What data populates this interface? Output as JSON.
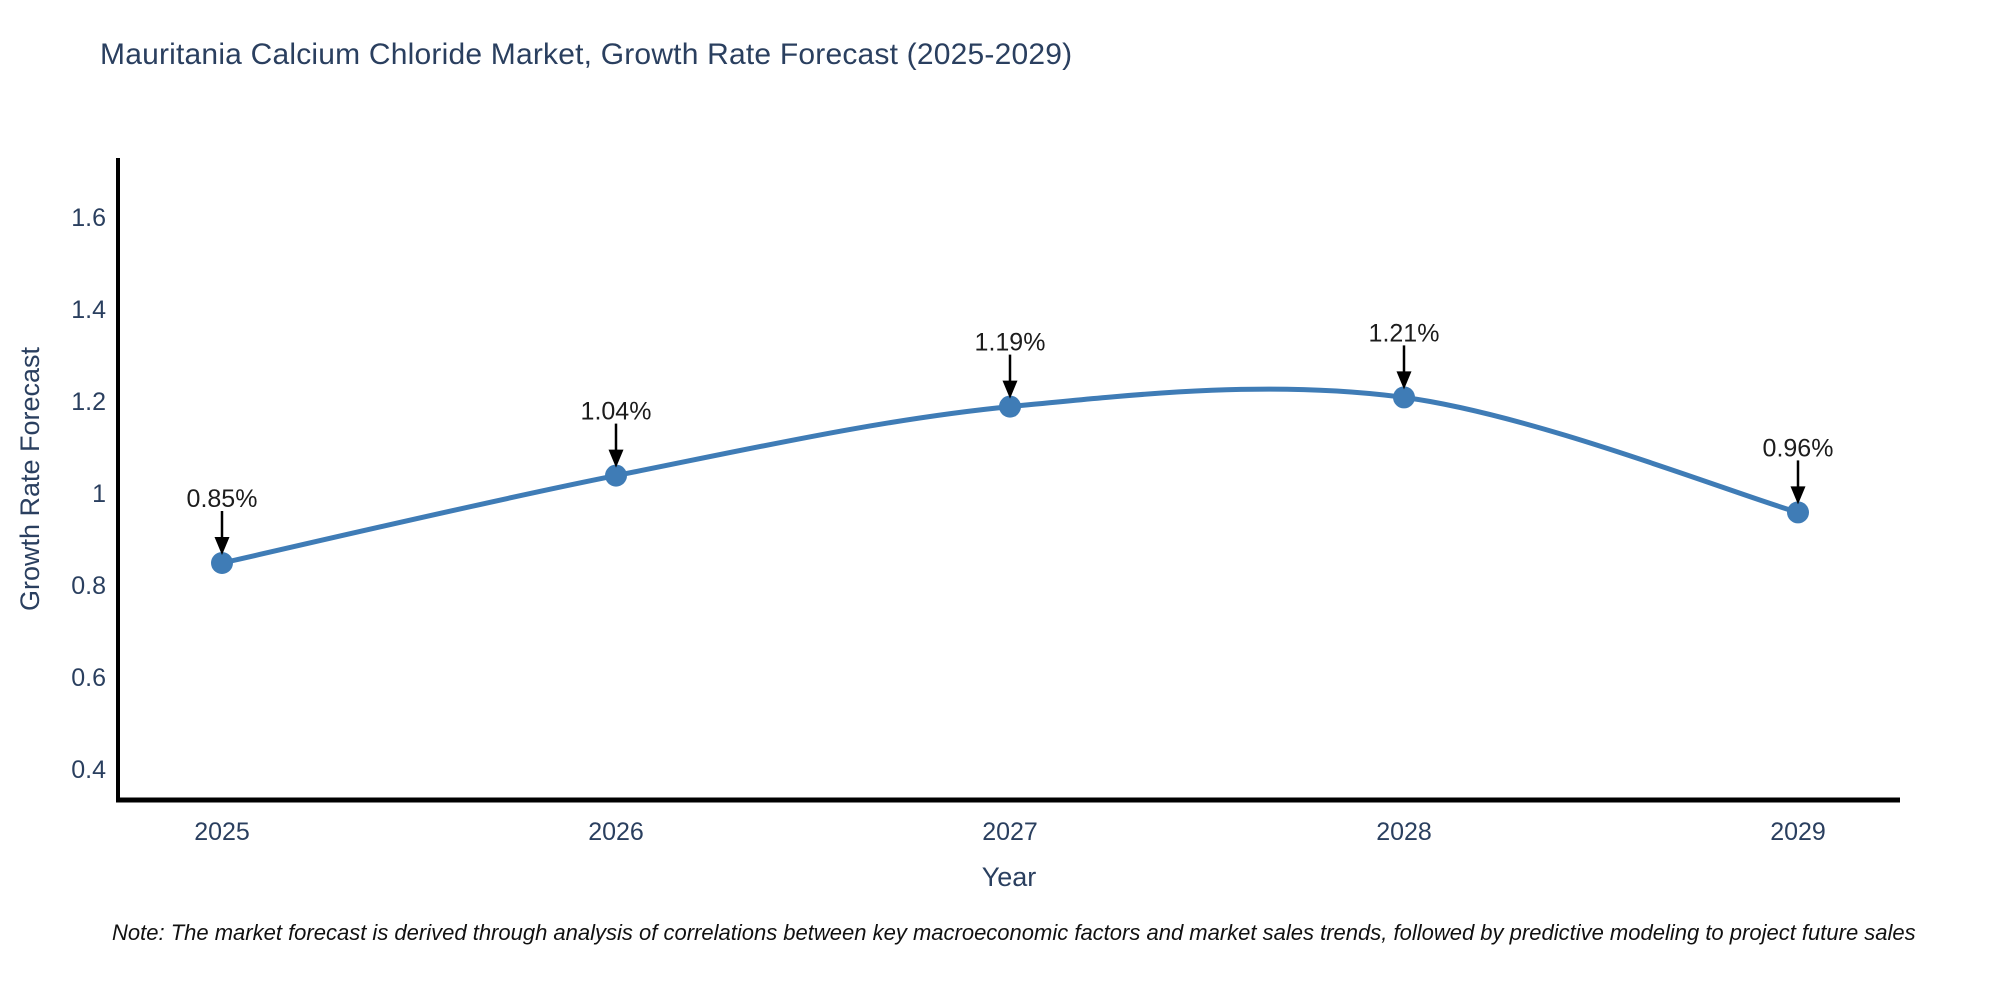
{
  "chart_data": {
    "type": "line",
    "title": "Mauritania Calcium Chloride Market, Growth Rate Forecast (2025-2029)",
    "xlabel": "Year",
    "ylabel": "Growth Rate Forecast",
    "x": [
      2025,
      2026,
      2027,
      2028,
      2029
    ],
    "series": [
      {
        "name": "Growth Rate Forecast",
        "values": [
          0.85,
          1.04,
          1.19,
          1.21,
          0.96
        ],
        "point_labels": [
          "0.85%",
          "1.04%",
          "1.19%",
          "1.21%",
          "0.96%"
        ]
      }
    ],
    "x_tick_labels": [
      "2025",
      "2026",
      "2027",
      "2028",
      "2029"
    ],
    "y_ticks": [
      0.4,
      0.6,
      0.8,
      1,
      1.2,
      1.4,
      1.6
    ],
    "ylim": [
      0.345,
      1.73
    ],
    "line_shape": "spline",
    "grid": false,
    "legend": "none",
    "colors": {
      "line": "#3f7cb6",
      "marker": "#3f7cb6",
      "axis": "#000000",
      "tick_text": "#2a3f5f",
      "annotation_text": "#1c1c1c",
      "annotation_arrow": "#000000",
      "background": "#ffffff"
    }
  },
  "note": "Note: The market forecast is derived through analysis of correlations between key macroeconomic factors and market sales trends, followed by predictive modeling to project future sales"
}
